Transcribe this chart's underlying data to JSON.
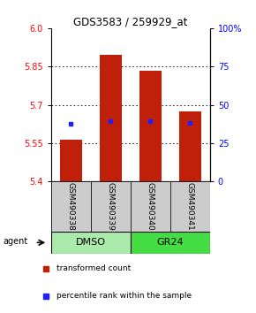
{
  "title": "GDS3583 / 259929_at",
  "categories": [
    "GSM490338",
    "GSM490339",
    "GSM490340",
    "GSM490341"
  ],
  "bar_bottoms": [
    5.4,
    5.4,
    5.4,
    5.4
  ],
  "bar_tops": [
    5.565,
    5.895,
    5.835,
    5.675
  ],
  "percentile_values": [
    5.625,
    5.635,
    5.635,
    5.63
  ],
  "ylim_left": [
    5.4,
    6.0
  ],
  "ylim_right": [
    0,
    100
  ],
  "yticks_left": [
    5.4,
    5.55,
    5.7,
    5.85,
    6.0
  ],
  "yticks_right": [
    0,
    25,
    50,
    75,
    100
  ],
  "ytick_labels_right": [
    "0",
    "25",
    "50",
    "75",
    "100%"
  ],
  "bar_color": "#c0200a",
  "marker_color": "#2020ff",
  "group_labels": [
    "DMSO",
    "GR24"
  ],
  "group_colors": [
    "#aaeaaa",
    "#44dd44"
  ],
  "group_ranges": [
    [
      0,
      2
    ],
    [
      2,
      4
    ]
  ],
  "agent_label": "agent",
  "legend_red": "transformed count",
  "legend_blue": "percentile rank within the sample",
  "bar_width": 0.55,
  "background_color": "#ffffff",
  "sample_box_color": "#cccccc"
}
